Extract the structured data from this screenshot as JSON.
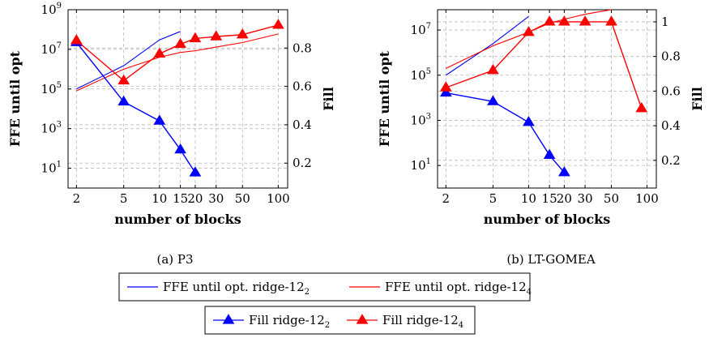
{
  "chart_data": [
    {
      "type": "line",
      "title": "",
      "caption": "(a) P3",
      "xlabel": "number of blocks",
      "ylabel_left": "FFE until opt",
      "ylabel_right": "Fill",
      "x_scale": "log",
      "y_left_scale": "log",
      "xlim": [
        1.7,
        120
      ],
      "y_left_lim_log10": [
        0,
        9
      ],
      "y_right_lim": [
        0.07,
        1.0
      ],
      "x_ticks": [
        2,
        5,
        10,
        15,
        20,
        30,
        50,
        100
      ],
      "x_tick_labels": [
        "2",
        "5",
        "10",
        "15",
        "20",
        "30",
        "50",
        "100"
      ],
      "y_left_ticks": [
        {
          "base": "10",
          "exp": "1",
          "value": 10
        },
        {
          "base": "10",
          "exp": "3",
          "value": 1000
        },
        {
          "base": "10",
          "exp": "5",
          "value": 100000
        },
        {
          "base": "10",
          "exp": "7",
          "value": 10000000
        },
        {
          "base": "10",
          "exp": "9",
          "value": 1000000000
        }
      ],
      "y_right_ticks": [
        0.2,
        0.4,
        0.6,
        0.8
      ],
      "y_right_tick_labels": [
        "0.2",
        "0.4",
        "0.6",
        "0.8"
      ],
      "grid": true,
      "series": [
        {
          "name": "FFE until opt. ridge-12_2",
          "axis": "left",
          "marker": "none",
          "color": "#0000ff",
          "x": [
            2,
            5,
            10,
            15
          ],
          "y": [
            100000,
            1500000,
            30000000,
            80000000
          ]
        },
        {
          "name": "FFE until opt. ridge-12_4",
          "axis": "left",
          "marker": "none",
          "color": "#ff0000",
          "x": [
            2,
            5,
            10,
            15,
            20,
            30,
            50,
            100
          ],
          "y": [
            80000,
            1000000,
            4000000,
            7000000,
            8500000,
            13000000,
            22000000,
            60000000
          ]
        },
        {
          "name": "Fill ridge-12_2",
          "axis": "right",
          "marker": "triangle",
          "color": "#0000ff",
          "x": [
            2,
            5,
            10,
            15,
            20
          ],
          "y": [
            0.83,
            0.52,
            0.42,
            0.27,
            0.15
          ]
        },
        {
          "name": "Fill ridge-12_4",
          "axis": "right",
          "marker": "triangle",
          "color": "#ff0000",
          "x": [
            2,
            5,
            10,
            15,
            20,
            30,
            50,
            100
          ],
          "y": [
            0.84,
            0.63,
            0.77,
            0.82,
            0.85,
            0.86,
            0.87,
            0.92
          ]
        }
      ]
    },
    {
      "type": "line",
      "title": "",
      "caption": "(b) LT-GOMEA",
      "xlabel": "number of blocks",
      "ylabel_left": "FFE until opt",
      "ylabel_right": "Fill",
      "x_scale": "log",
      "y_left_scale": "log",
      "xlim": [
        1.7,
        120
      ],
      "y_left_lim_log10": [
        0,
        7.9
      ],
      "y_right_lim": [
        0.04,
        1.07
      ],
      "x_ticks": [
        2,
        5,
        10,
        15,
        20,
        30,
        50,
        100
      ],
      "x_tick_labels": [
        "2",
        "5",
        "10",
        "15",
        "20",
        "30",
        "50",
        "100"
      ],
      "y_left_ticks": [
        {
          "base": "10",
          "exp": "1",
          "value": 10
        },
        {
          "base": "10",
          "exp": "3",
          "value": 1000
        },
        {
          "base": "10",
          "exp": "5",
          "value": 100000
        },
        {
          "base": "10",
          "exp": "7",
          "value": 10000000
        }
      ],
      "y_right_ticks": [
        0.2,
        0.4,
        0.6,
        0.8,
        1.0
      ],
      "y_right_tick_labels": [
        "0.2",
        "0.4",
        "0.6",
        "0.8",
        "1"
      ],
      "grid": true,
      "series": [
        {
          "name": "FFE until opt. ridge-12_2",
          "axis": "left",
          "marker": "none",
          "color": "#0000ff",
          "x": [
            2,
            5,
            10
          ],
          "y": [
            100000,
            2500000,
            40000000
          ]
        },
        {
          "name": "FFE until opt. ridge-12_4",
          "axis": "left",
          "marker": "none",
          "color": "#ff0000",
          "x": [
            2,
            5,
            10,
            15,
            20,
            30,
            50
          ],
          "y": [
            200000,
            2000000,
            8000000,
            20000000,
            30000000,
            50000000,
            80000000
          ]
        },
        {
          "name": "Fill ridge-12_2",
          "axis": "right",
          "marker": "triangle",
          "color": "#0000ff",
          "x": [
            2,
            5,
            10,
            15,
            20
          ],
          "y": [
            0.59,
            0.54,
            0.42,
            0.23,
            0.13
          ]
        },
        {
          "name": "Fill ridge-12_4",
          "axis": "right",
          "marker": "triangle",
          "color": "#ff0000",
          "x": [
            2,
            5,
            10,
            15,
            20,
            30,
            50,
            90
          ],
          "y": [
            0.62,
            0.72,
            0.94,
            1.0,
            1.0,
            1.0,
            1.0,
            0.5
          ]
        }
      ]
    }
  ],
  "legend": {
    "rows": [
      [
        {
          "base": "FFE until opt. ridge-12",
          "sub": "2",
          "color": "#0000ff",
          "marker": "none"
        },
        {
          "base": "FFE until opt. ridge-12",
          "sub": "4",
          "color": "#ff0000",
          "marker": "none"
        }
      ],
      [
        {
          "base": "Fill ridge-12",
          "sub": "2",
          "color": "#0000ff",
          "marker": "triangle"
        },
        {
          "base": "Fill ridge-12",
          "sub": "4",
          "color": "#ff0000",
          "marker": "triangle"
        }
      ]
    ]
  }
}
